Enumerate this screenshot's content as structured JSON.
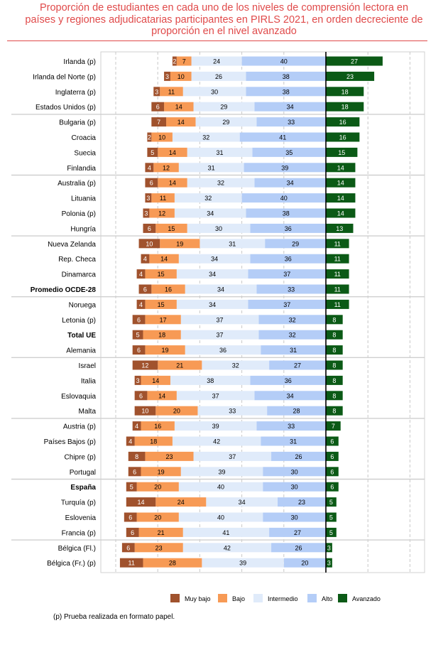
{
  "title_lines": [
    "Proporción de estudiantes en cada uno de los niveles de comprensión lectora en",
    "países y regiones adjudicatarias participantes en PIRLS 2021, en orden decreciente de",
    "proporción en el nivel avanzado"
  ],
  "note": "(p) Prueba realizada en formato papel.",
  "chart_data": {
    "type": "bar",
    "orientation": "horizontal",
    "stacked": "diverging",
    "title": "Proporción de estudiantes en cada uno de los niveles de comprensión lectora en países y regiones adjudicatarias participantes en PIRLS 2021, en orden decreciente de proporción en el nivel avanzado",
    "legend_position": "bottom",
    "grid": true,
    "categories": [
      "Irlanda (p)",
      "Irlanda del Norte (p)",
      "Inglaterra (p)",
      "Estados Unidos (p)",
      "Bulgaria (p)",
      "Croacia",
      "Suecia",
      "Finlandia",
      "Australia (p)",
      "Lituania",
      "Polonia (p)",
      "Hungría",
      "Nueva Zelanda",
      "Rep. Checa",
      "Dinamarca",
      "Promedio OCDE-28",
      "Noruega",
      "Letonia (p)",
      "Total UE",
      "Alemania",
      "Israel",
      "Italia",
      "Eslovaquia",
      "Malta",
      "Austria (p)",
      "Países Bajos (p)",
      "Chipre (p)",
      "Portugal",
      "España",
      "Turquía (p)",
      "Eslovenia",
      "Francia (p)",
      "Bélgica (Fl.)",
      "Bélgica (Fr.) (p)"
    ],
    "bold_categories": [
      "Promedio OCDE-28",
      "Total UE",
      "España"
    ],
    "series": [
      {
        "name": "Muy bajo",
        "color": "#a0522d",
        "label_color": "#ffffff",
        "values": [
          2,
          3,
          3,
          6,
          7,
          2,
          5,
          4,
          6,
          3,
          3,
          6,
          10,
          4,
          4,
          6,
          4,
          6,
          5,
          6,
          12,
          3,
          6,
          10,
          4,
          4,
          8,
          6,
          5,
          14,
          6,
          6,
          6,
          11
        ]
      },
      {
        "name": "Bajo",
        "color": "#f79a55",
        "label_color": "#000000",
        "values": [
          7,
          10,
          11,
          14,
          14,
          10,
          14,
          12,
          14,
          11,
          12,
          15,
          19,
          14,
          15,
          16,
          15,
          17,
          18,
          19,
          21,
          14,
          14,
          20,
          16,
          18,
          23,
          19,
          20,
          24,
          20,
          21,
          23,
          28
        ]
      },
      {
        "name": "Intermedio",
        "color": "#e0ebfa",
        "label_color": "#000000",
        "values": [
          24,
          26,
          30,
          29,
          29,
          32,
          31,
          31,
          32,
          32,
          34,
          30,
          31,
          34,
          34,
          34,
          34,
          37,
          37,
          36,
          32,
          38,
          37,
          33,
          39,
          42,
          37,
          39,
          40,
          34,
          40,
          41,
          42,
          39
        ]
      },
      {
        "name": "Alto",
        "color": "#b4cdf7",
        "label_color": "#000000",
        "values": [
          40,
          38,
          38,
          34,
          33,
          41,
          35,
          39,
          34,
          40,
          38,
          36,
          29,
          36,
          37,
          33,
          37,
          32,
          32,
          31,
          27,
          36,
          34,
          28,
          33,
          31,
          26,
          30,
          30,
          23,
          30,
          27,
          26,
          20
        ]
      },
      {
        "name": "Avanzado",
        "color": "#0b5a16",
        "label_color": "#ffffff",
        "values": [
          27,
          23,
          18,
          18,
          16,
          16,
          15,
          14,
          14,
          14,
          14,
          13,
          11,
          11,
          11,
          11,
          11,
          8,
          8,
          8,
          8,
          8,
          8,
          8,
          7,
          6,
          6,
          6,
          6,
          5,
          5,
          5,
          3,
          3
        ]
      }
    ],
    "group_boundaries_after": [
      3,
      7,
      11,
      15,
      19,
      23,
      27,
      31
    ]
  }
}
